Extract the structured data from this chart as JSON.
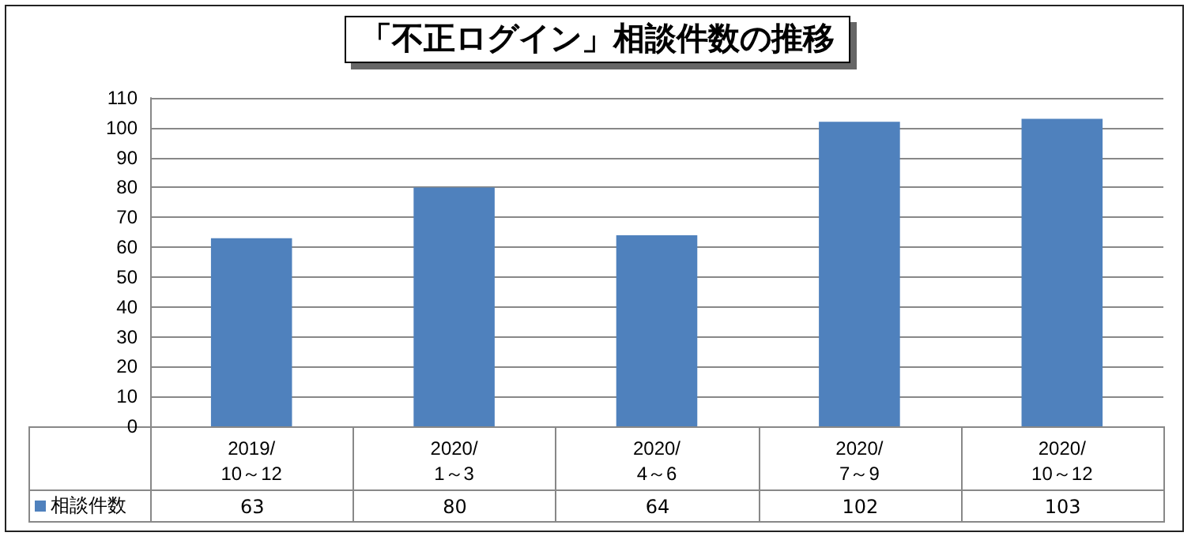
{
  "chart_data": {
    "type": "bar",
    "title": "「不正ログイン」相談件数の推移",
    "categories": [
      "2019/\n10～12",
      "2020/\n1～3",
      "2020/\n4～6",
      "2020/\n7～9",
      "2020/\n10～12"
    ],
    "series": [
      {
        "name": "相談件数",
        "color": "#4f81bd",
        "values": [
          63,
          80,
          64,
          102,
          103
        ]
      }
    ],
    "ylim": [
      0,
      110
    ],
    "yticks": [
      0,
      10,
      20,
      30,
      40,
      50,
      60,
      70,
      80,
      90,
      100,
      110
    ],
    "grid": "y",
    "legend": "bottom left",
    "data_labels": true
  }
}
